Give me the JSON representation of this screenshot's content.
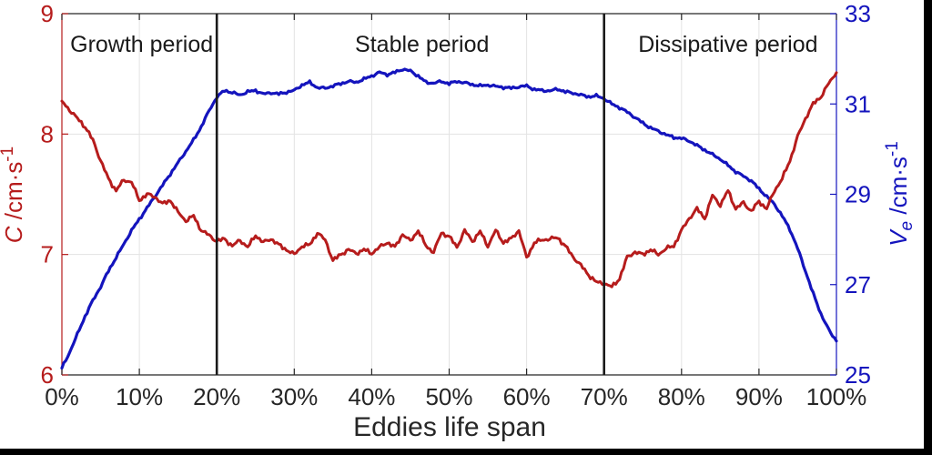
{
  "figure": {
    "plot_background": "#ffffff",
    "outer_background": "#000000"
  },
  "chart_data": {
    "type": "line",
    "title": "",
    "xlabel": "Eddies life span",
    "x_range": [
      0,
      100
    ],
    "x_ticks": [
      {
        "label": "0%",
        "pct": 0
      },
      {
        "label": "10%",
        "pct": 10
      },
      {
        "label": "20%",
        "pct": 20
      },
      {
        "label": "30%",
        "pct": 30
      },
      {
        "label": "40%",
        "pct": 40
      },
      {
        "label": "50%",
        "pct": 50
      },
      {
        "label": "60%",
        "pct": 60
      },
      {
        "label": "70%",
        "pct": 70
      },
      {
        "label": "80%",
        "pct": 80
      },
      {
        "label": "90%",
        "pct": 90
      },
      {
        "label": "100%",
        "pct": 100
      }
    ],
    "left_axis": {
      "var_name": "C",
      "unit_main": " /cm·s",
      "unit_sup": "-1",
      "full_label": "C /cm·s-1",
      "color": "#b61c1c",
      "range": [
        6,
        9
      ],
      "ticks": [
        6,
        7,
        8,
        9
      ]
    },
    "right_axis": {
      "var_name": "V",
      "var_sub": "e",
      "unit_main": " /cm·s",
      "unit_sup": "-1",
      "full_label": "Ve /cm·s-1",
      "color": "#1414bd",
      "range": [
        25,
        33
      ],
      "ticks": [
        25,
        27,
        29,
        31,
        33
      ]
    },
    "axis_color": "#262626",
    "grid": {
      "x_pct": [
        10,
        20,
        30,
        40,
        50,
        60,
        70,
        80,
        90
      ],
      "left_y": [
        7,
        8
      ],
      "color": "#e3e3e3"
    },
    "dividers": {
      "x_pct": [
        20,
        70
      ],
      "color": "#1a1a1a"
    },
    "annotations": [
      {
        "text": "Growth period",
        "x_pct": 10.3
      },
      {
        "text": "Stable period",
        "x_pct": 46.5
      },
      {
        "text": "Dissipative period",
        "x_pct": 86.0
      }
    ],
    "legend": "none",
    "series": [
      {
        "name": "C",
        "axis": "left",
        "color": "#b61c1c",
        "x_pct_step": 1,
        "values": [
          8.27,
          8.2,
          8.13,
          8.06,
          7.95,
          7.78,
          7.63,
          7.53,
          7.62,
          7.6,
          7.45,
          7.5,
          7.48,
          7.42,
          7.45,
          7.35,
          7.28,
          7.32,
          7.2,
          7.16,
          7.11,
          7.13,
          7.07,
          7.12,
          7.06,
          7.16,
          7.1,
          7.13,
          7.08,
          7.04,
          7.0,
          7.07,
          7.08,
          7.18,
          7.12,
          6.95,
          7.0,
          7.04,
          7.01,
          7.04,
          7.01,
          7.06,
          7.1,
          7.06,
          7.17,
          7.11,
          7.2,
          7.07,
          7.02,
          7.18,
          7.15,
          7.06,
          7.2,
          7.11,
          7.19,
          7.07,
          7.2,
          7.1,
          7.13,
          7.2,
          6.97,
          7.1,
          7.12,
          7.13,
          7.14,
          7.07,
          6.98,
          6.91,
          6.83,
          6.77,
          6.76,
          6.73,
          6.8,
          6.98,
          7.02,
          7.0,
          7.04,
          7.0,
          7.05,
          7.07,
          7.2,
          7.3,
          7.38,
          7.3,
          7.49,
          7.41,
          7.53,
          7.38,
          7.43,
          7.36,
          7.44,
          7.38,
          7.53,
          7.63,
          7.78,
          7.98,
          8.13,
          8.25,
          8.31,
          8.42,
          8.51
        ]
      },
      {
        "name": "Ve",
        "axis": "right",
        "color": "#1414bd",
        "x_pct_step": 1,
        "values": [
          25.15,
          25.5,
          25.9,
          26.3,
          26.65,
          26.95,
          27.3,
          27.6,
          27.9,
          28.2,
          28.45,
          28.7,
          28.95,
          29.2,
          29.45,
          29.7,
          29.95,
          30.2,
          30.5,
          30.85,
          31.15,
          31.3,
          31.25,
          31.2,
          31.27,
          31.3,
          31.22,
          31.25,
          31.22,
          31.26,
          31.3,
          31.42,
          31.48,
          31.36,
          31.35,
          31.4,
          31.45,
          31.5,
          31.48,
          31.55,
          31.62,
          31.7,
          31.65,
          31.7,
          31.77,
          31.73,
          31.62,
          31.48,
          31.46,
          31.5,
          31.45,
          31.5,
          31.47,
          31.43,
          31.4,
          31.42,
          31.39,
          31.37,
          31.35,
          31.38,
          31.4,
          31.32,
          31.3,
          31.29,
          31.33,
          31.27,
          31.24,
          31.2,
          31.16,
          31.18,
          31.12,
          31.0,
          30.92,
          30.82,
          30.7,
          30.58,
          30.47,
          30.4,
          30.32,
          30.26,
          30.24,
          30.18,
          30.08,
          29.98,
          29.88,
          29.78,
          29.64,
          29.5,
          29.4,
          29.3,
          29.12,
          28.95,
          28.78,
          28.52,
          28.22,
          27.8,
          27.3,
          26.8,
          26.35,
          26.0,
          25.75
        ]
      }
    ]
  }
}
